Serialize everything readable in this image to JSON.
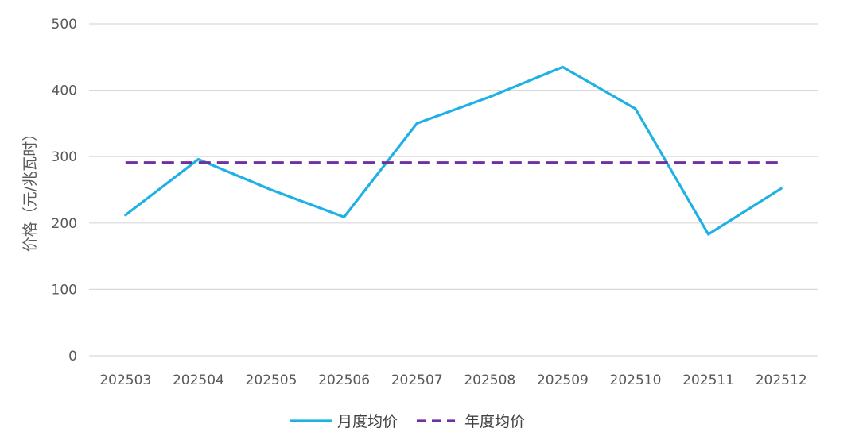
{
  "chart_data": {
    "type": "line",
    "title": "",
    "xlabel": "",
    "ylabel": "价格（元/兆瓦时）",
    "ylim": [
      0,
      500
    ],
    "yticks": [
      0,
      100,
      200,
      300,
      400,
      500
    ],
    "grid": true,
    "legend_position": "bottom",
    "categories": [
      "202503",
      "202504",
      "202505",
      "202506",
      "202507",
      "202508",
      "202509",
      "202510",
      "202511",
      "202512"
    ],
    "series": [
      {
        "name": "月度均价",
        "style": "solid",
        "color": "#1EB1E4",
        "values": [
          212,
          296,
          250,
          209,
          350,
          390,
          435,
          372,
          183,
          252
        ]
      },
      {
        "name": "年度均价",
        "style": "dashed",
        "color": "#7030A0",
        "values": [
          291,
          291,
          291,
          291,
          291,
          291,
          291,
          291,
          291,
          291
        ]
      }
    ]
  },
  "colors": {
    "gridline": "#D9D9D9",
    "tick_text": "#595959",
    "legend_text": "#404040"
  }
}
